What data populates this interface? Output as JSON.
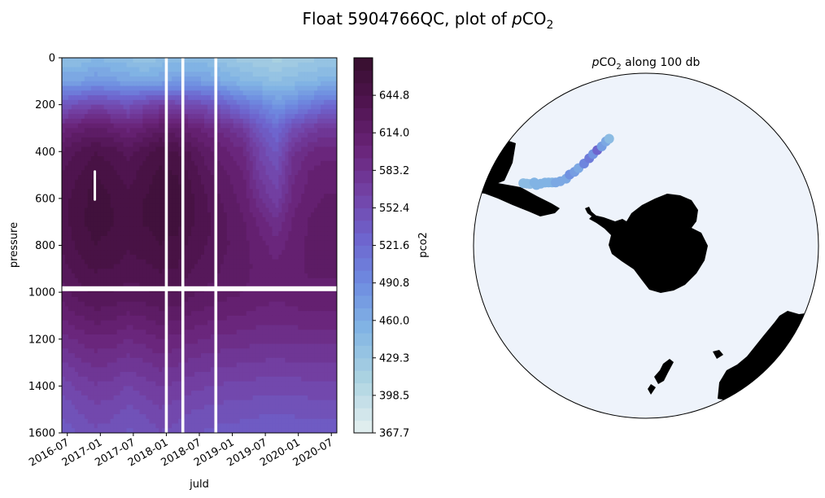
{
  "figure": {
    "title_main": "Float 5904766QC, plot of ",
    "title_var": "p",
    "title_chem": "CO",
    "title_sub": "2"
  },
  "colors": {
    "ocean": "#eef3fb",
    "land": "#000000",
    "gap": "#ffffff"
  },
  "chart_data": [
    {
      "type": "heatmap",
      "title": "",
      "xlabel": "juld",
      "ylabel": "pressure",
      "colorbar_label": "pco2",
      "x_ticks": [
        "2016-07",
        "2017-01",
        "2017-07",
        "2018-01",
        "2018-07",
        "2019-01",
        "2019-07",
        "2020-01",
        "2020-07"
      ],
      "y_ticks": [
        0,
        200,
        400,
        600,
        800,
        1000,
        1200,
        1400,
        1600
      ],
      "ylim": [
        1600,
        0
      ],
      "xlim": [
        "2016-06",
        "2020-08"
      ],
      "colorbar_ticks": [
        367.7,
        398.5,
        429.3,
        460.0,
        490.8,
        521.6,
        552.4,
        583.2,
        614.0,
        644.8
      ],
      "colorbar_tick_labels": [
        "367.7",
        "398.5",
        "429.3",
        "460.0",
        "490.8",
        "521.6",
        "552.4",
        "583.2",
        "614.0",
        "644.8"
      ],
      "colorbar_range": [
        367.7,
        675.6
      ],
      "time_columns": [
        "2016-06",
        "2016-09",
        "2016-12",
        "2017-03",
        "2017-06",
        "2017-09",
        "2017-12",
        "2018-03",
        "2018-06",
        "2018-09",
        "2018-12",
        "2019-03",
        "2019-06",
        "2019-09",
        "2019-12",
        "2020-03",
        "2020-06",
        "2020-08"
      ],
      "depth_rows": [
        0,
        100,
        200,
        300,
        400,
        500,
        600,
        700,
        800,
        900,
        1000,
        1100,
        1200,
        1300,
        1400,
        1500,
        1600
      ],
      "values": [
        [
          440,
          440,
          450,
          445,
          440,
          430,
          440,
          445,
          445,
          440,
          430,
          425,
          420,
          415,
          420,
          425,
          430,
          430
        ],
        [
          470,
          470,
          480,
          475,
          470,
          465,
          470,
          475,
          475,
          470,
          460,
          450,
          445,
          440,
          445,
          450,
          455,
          455
        ],
        [
          540,
          550,
          560,
          555,
          545,
          560,
          570,
          560,
          555,
          545,
          530,
          510,
          500,
          480,
          490,
          505,
          520,
          520
        ],
        [
          600,
          610,
          615,
          610,
          600,
          610,
          620,
          615,
          605,
          595,
          585,
          570,
          540,
          520,
          550,
          565,
          575,
          575
        ],
        [
          625,
          635,
          645,
          640,
          630,
          640,
          650,
          645,
          630,
          615,
          605,
          595,
          560,
          540,
          580,
          595,
          600,
          600
        ],
        [
          635,
          645,
          655,
          650,
          640,
          650,
          658,
          655,
          640,
          625,
          615,
          605,
          570,
          555,
          590,
          605,
          610,
          610
        ],
        [
          640,
          650,
          660,
          655,
          648,
          655,
          662,
          660,
          645,
          632,
          620,
          610,
          585,
          565,
          598,
          610,
          615,
          615
        ],
        [
          640,
          652,
          660,
          656,
          650,
          656,
          660,
          658,
          645,
          635,
          625,
          615,
          600,
          585,
          605,
          615,
          618,
          618
        ],
        [
          636,
          648,
          655,
          652,
          646,
          650,
          655,
          652,
          640,
          633,
          625,
          618,
          608,
          598,
          610,
          616,
          618,
          618
        ],
        [
          630,
          640,
          646,
          645,
          640,
          642,
          646,
          644,
          634,
          628,
          622,
          617,
          611,
          606,
          612,
          615,
          616,
          616
        ],
        [
          620,
          630,
          636,
          634,
          630,
          632,
          636,
          634,
          626,
          622,
          618,
          614,
          610,
          607,
          610,
          612,
          612,
          612
        ],
        [
          605,
          614,
          620,
          618,
          612,
          615,
          620,
          618,
          612,
          608,
          605,
          603,
          600,
          598,
          600,
          602,
          602,
          602
        ],
        [
          588,
          596,
          602,
          600,
          594,
          598,
          604,
          600,
          596,
          592,
          590,
          588,
          586,
          585,
          586,
          587,
          587,
          587
        ],
        [
          572,
          580,
          586,
          584,
          578,
          582,
          588,
          585,
          580,
          577,
          575,
          574,
          572,
          571,
          572,
          573,
          573,
          573
        ],
        [
          556,
          565,
          572,
          570,
          562,
          568,
          574,
          570,
          566,
          563,
          561,
          560,
          558,
          557,
          558,
          559,
          559,
          559
        ],
        [
          545,
          553,
          560,
          557,
          550,
          555,
          562,
          558,
          553,
          550,
          548,
          547,
          545,
          544,
          545,
          546,
          546,
          546
        ],
        [
          535,
          543,
          550,
          547,
          540,
          545,
          552,
          548,
          543,
          540,
          538,
          537,
          535,
          534,
          535,
          536,
          536,
          536
        ]
      ],
      "gap_months": [
        "2018-01",
        "2018-04",
        "2018-10"
      ],
      "gap_band_pressure": 985,
      "short_gap": {
        "month": "2016-12",
        "pressure_range": [
          480,
          610
        ]
      }
    },
    {
      "type": "scatter",
      "title_var": "p",
      "title_chem": "CO",
      "title_sub": "2",
      "title_rest": " along 100 db",
      "projection": "south-polar-stereographic",
      "track": [
        {
          "lon": -63,
          "lat": -40.5,
          "v": 440
        },
        {
          "lon": -62.5,
          "lat": -41.5,
          "v": 440
        },
        {
          "lon": -62,
          "lat": -42.5,
          "v": 445
        },
        {
          "lon": -60.5,
          "lat": -43.5,
          "v": 450
        },
        {
          "lon": -61,
          "lat": -44.5,
          "v": 455
        },
        {
          "lon": -59.5,
          "lat": -45.5,
          "v": 460
        },
        {
          "lon": -58,
          "lat": -46.5,
          "v": 455
        },
        {
          "lon": -57,
          "lat": -47.5,
          "v": 450
        },
        {
          "lon": -56,
          "lat": -48.5,
          "v": 460
        },
        {
          "lon": -55,
          "lat": -49.5,
          "v": 470
        },
        {
          "lon": -53,
          "lat": -50.5,
          "v": 465
        },
        {
          "lon": -50,
          "lat": -51.5,
          "v": 470
        },
        {
          "lon": -47,
          "lat": -51.5,
          "v": 490
        },
        {
          "lon": -44,
          "lat": -52,
          "v": 480
        },
        {
          "lon": -41,
          "lat": -52,
          "v": 470
        },
        {
          "lon": -37,
          "lat": -52,
          "v": 500
        },
        {
          "lon": -33,
          "lat": -51.5,
          "v": 510
        },
        {
          "lon": -30,
          "lat": -51,
          "v": 490
        },
        {
          "lon": -27,
          "lat": -50.5,
          "v": 530
        },
        {
          "lon": -24,
          "lat": -50,
          "v": 480
        },
        {
          "lon": -21,
          "lat": -49,
          "v": 470
        },
        {
          "lon": -19,
          "lat": -48.5,
          "v": 440
        }
      ]
    }
  ]
}
